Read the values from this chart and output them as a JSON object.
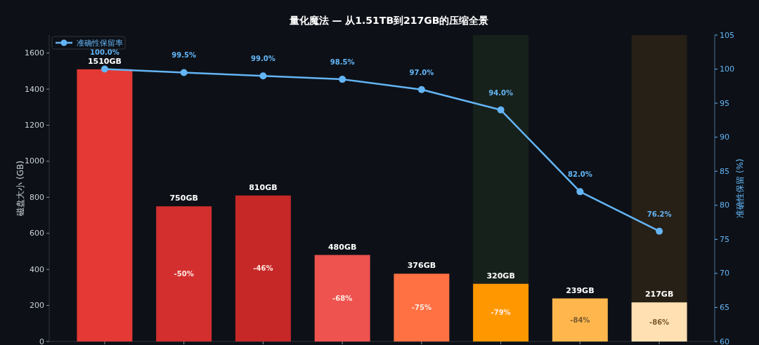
{
  "chart_data": {
    "type": "bar",
    "title": "量化魔法 — 从1.51TB到217GB的压缩全景",
    "ylabel": "磁盘大小 (GB)",
    "y2label": "准确性保留 (%)",
    "categories": [
      null,
      null,
      null,
      null,
      null,
      null,
      null,
      null
    ],
    "ylim": [
      0,
      1700
    ],
    "yticks": [
      0,
      200,
      400,
      600,
      800,
      1000,
      1200,
      1400,
      1600
    ],
    "y2lim": [
      60,
      105
    ],
    "y2ticks": [
      60,
      65,
      70,
      75,
      80,
      85,
      90,
      95,
      100,
      105
    ],
    "grid": false,
    "legend": "top left",
    "series": [
      {
        "colors": [
          "#e53935",
          "#d32f2f",
          "#c62828",
          "#ef5350",
          "#ff7043",
          "#ff9800",
          "#ffb74d",
          "#ffe0b2"
        ],
        "values": [
          1510,
          750,
          810,
          480,
          376,
          320,
          239,
          217
        ],
        "value_labels": [
          "1510GB",
          "750GB",
          "810GB",
          "480GB",
          "376GB",
          "320GB",
          "239GB",
          "217GB"
        ]
      },
      {
        "type": "line",
        "name": "准确性保留率",
        "axis": "y2",
        "color": "#64b5f6",
        "marker": "circle",
        "line_style": "solid",
        "values": [
          100,
          99.5,
          99,
          98.5,
          97,
          94,
          82,
          76.2
        ],
        "value_labels": [
          "100.0%",
          "99.5%",
          "99.0%",
          "98.5%",
          "97.0%",
          "94.0%",
          "82.0%",
          "76.2%"
        ]
      }
    ],
    "annotations": [
      "-50%",
      "-46%",
      "-68%",
      "-75%",
      "-79%",
      "-84%",
      "-86%"
    ]
  }
}
